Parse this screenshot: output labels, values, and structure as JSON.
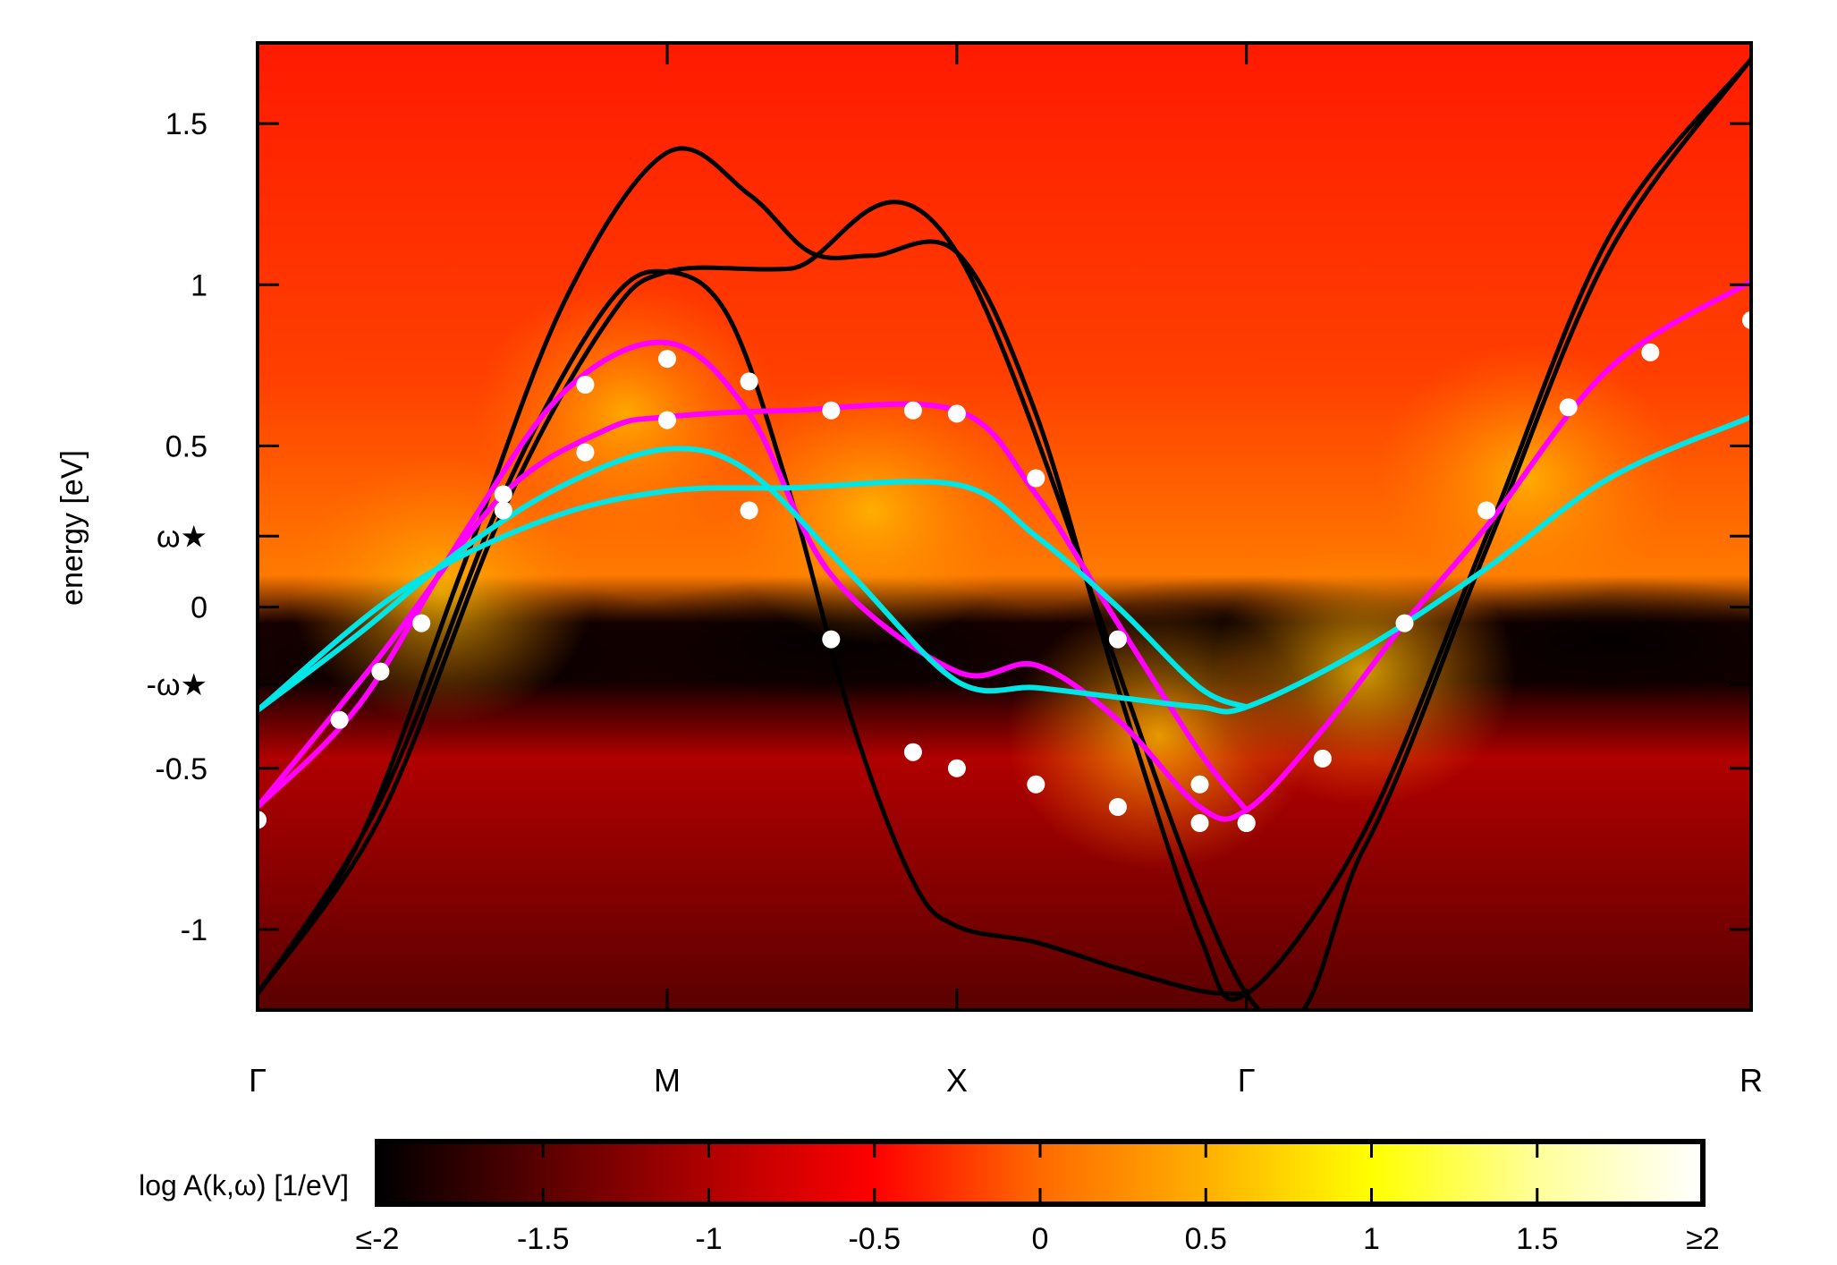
{
  "chart_data": {
    "type": "heatmap",
    "title": "",
    "xlabel": "",
    "ylabel": "energy [eV]",
    "ylim": [
      -1.25,
      1.75
    ],
    "x_ticks": [
      {
        "label": "Γ",
        "k": 0
      },
      {
        "label": "M",
        "k": 1
      },
      {
        "label": "X",
        "k": 1.707
      },
      {
        "label": "Γ",
        "k": 2.414
      },
      {
        "label": "R",
        "k": 3.646
      }
    ],
    "y_ticks": [
      {
        "label": "1.5",
        "value": 1.5
      },
      {
        "label": "1",
        "value": 1.0
      },
      {
        "label": "0.5",
        "value": 0.5
      },
      {
        "label": "ω★",
        "value": 0.22
      },
      {
        "label": "0",
        "value": 0.0
      },
      {
        "label": "-ω★",
        "value": -0.24
      },
      {
        "label": "-0.5",
        "value": -0.5
      },
      {
        "label": "-1",
        "value": -1.0
      }
    ],
    "colorbar": {
      "title": "log A(k,ω) [1/eV]",
      "range": [
        -2,
        2
      ],
      "ticks": [
        "≤-2",
        "-1.5",
        "-1",
        "-0.5",
        "0",
        "0.5",
        "1",
        "1.5",
        "≥2"
      ],
      "colors": [
        "#000000",
        "#5a0000",
        "#b00000",
        "#ff0000",
        "#ff6a00",
        "#ffb000",
        "#ffff00",
        "#ffff9a",
        "#ffffff"
      ]
    },
    "series": [
      {
        "color": "#000000",
        "style": "line",
        "x": [
          0,
          0.25,
          0.5,
          0.75,
          1.0,
          1.2,
          1.35,
          1.5,
          1.707,
          1.9,
          2.1,
          2.3,
          2.414,
          2.7,
          3.0,
          3.3,
          3.646
        ],
        "y": [
          -1.2,
          -0.72,
          0.12,
          0.95,
          1.41,
          1.28,
          1.1,
          1.09,
          1.1,
          0.6,
          -0.25,
          -1.02,
          -1.2,
          -0.7,
          0.22,
          1.15,
          1.7
        ]
      },
      {
        "color": "#000000",
        "style": "line",
        "x": [
          0,
          0.3,
          0.6,
          0.85,
          1.0,
          1.15,
          1.3,
          1.45,
          1.6,
          1.707,
          1.9,
          2.1,
          2.3,
          2.414
        ],
        "y": [
          -1.2,
          -0.6,
          0.35,
          0.93,
          1.04,
          0.9,
          0.35,
          -0.35,
          -0.85,
          -0.99,
          -1.04,
          -1.12,
          -1.19,
          -1.2
        ]
      },
      {
        "color": "#000000",
        "style": "line",
        "x": [
          0,
          0.3,
          0.6,
          0.85,
          1.0,
          1.3,
          1.707,
          2.414,
          2.7,
          3.0,
          3.3,
          3.646
        ],
        "y": [
          -1.2,
          -0.65,
          0.3,
          0.88,
          1.04,
          1.05,
          1.1,
          -1.2,
          -0.75,
          0.18,
          1.1,
          1.7
        ]
      },
      {
        "color": "#ff00ff",
        "style": "line",
        "x": [
          0,
          0.25,
          0.5,
          0.75,
          1.0,
          1.2,
          1.4,
          1.707,
          1.9,
          2.1,
          2.3,
          2.414,
          2.6,
          2.8,
          3.0,
          3.3,
          3.646
        ],
        "y": [
          -0.62,
          -0.3,
          0.22,
          0.67,
          0.82,
          0.6,
          0.1,
          -0.2,
          -0.18,
          -0.35,
          -0.62,
          -0.63,
          -0.38,
          -0.05,
          0.25,
          0.74,
          1.01
        ]
      },
      {
        "color": "#ff00ff",
        "style": "line",
        "x": [
          0,
          0.3,
          0.6,
          0.85,
          1.0,
          1.3,
          1.707,
          1.9,
          2.1,
          2.3,
          2.414
        ],
        "y": [
          -0.62,
          -0.15,
          0.35,
          0.55,
          0.59,
          0.61,
          0.61,
          0.35,
          -0.05,
          -0.45,
          -0.63
        ]
      },
      {
        "color": "#00e5e5",
        "style": "line",
        "x": [
          0,
          0.25,
          0.5,
          0.75,
          1.0,
          1.2,
          1.45,
          1.707,
          1.9,
          2.1,
          2.3,
          2.414,
          2.7,
          3.0,
          3.3,
          3.646
        ],
        "y": [
          -0.32,
          -0.08,
          0.18,
          0.38,
          0.49,
          0.42,
          0.1,
          -0.23,
          -0.25,
          -0.28,
          -0.31,
          -0.31,
          -0.13,
          0.12,
          0.4,
          0.59
        ]
      },
      {
        "color": "#00e5e5",
        "style": "line",
        "x": [
          0,
          0.35,
          0.7,
          1.0,
          1.3,
          1.707,
          1.9,
          2.1,
          2.3,
          2.414
        ],
        "y": [
          -0.32,
          0.05,
          0.27,
          0.36,
          0.37,
          0.38,
          0.22,
          0.0,
          -0.25,
          -0.31
        ]
      },
      {
        "color": "#ffffff",
        "style": "points",
        "x": [
          0,
          0.2,
          0.4,
          0.6,
          0.8,
          1.0,
          1.2,
          1.4,
          1.6,
          1.707,
          1.9,
          2.1,
          2.3,
          2.414,
          2.6,
          2.8,
          3.0,
          3.2,
          3.4,
          3.646
        ],
        "y": [
          -0.66,
          -0.35,
          -0.05,
          0.35,
          0.69,
          0.77,
          0.7,
          0.61,
          0.61,
          0.6,
          0.4,
          -0.1,
          -0.55,
          -0.67,
          -0.47,
          -0.05,
          0.3,
          0.62,
          0.79,
          0.89
        ]
      },
      {
        "color": "#ffffff",
        "style": "points",
        "x": [
          0,
          0.3,
          0.6,
          0.8,
          1.0,
          1.2,
          1.4,
          1.6,
          1.707,
          1.9,
          2.1,
          2.3,
          2.414
        ],
        "y": [
          -0.66,
          -0.2,
          0.3,
          0.48,
          0.58,
          0.3,
          -0.1,
          -0.45,
          -0.5,
          -0.55,
          -0.62,
          -0.67,
          -0.67
        ]
      }
    ]
  }
}
